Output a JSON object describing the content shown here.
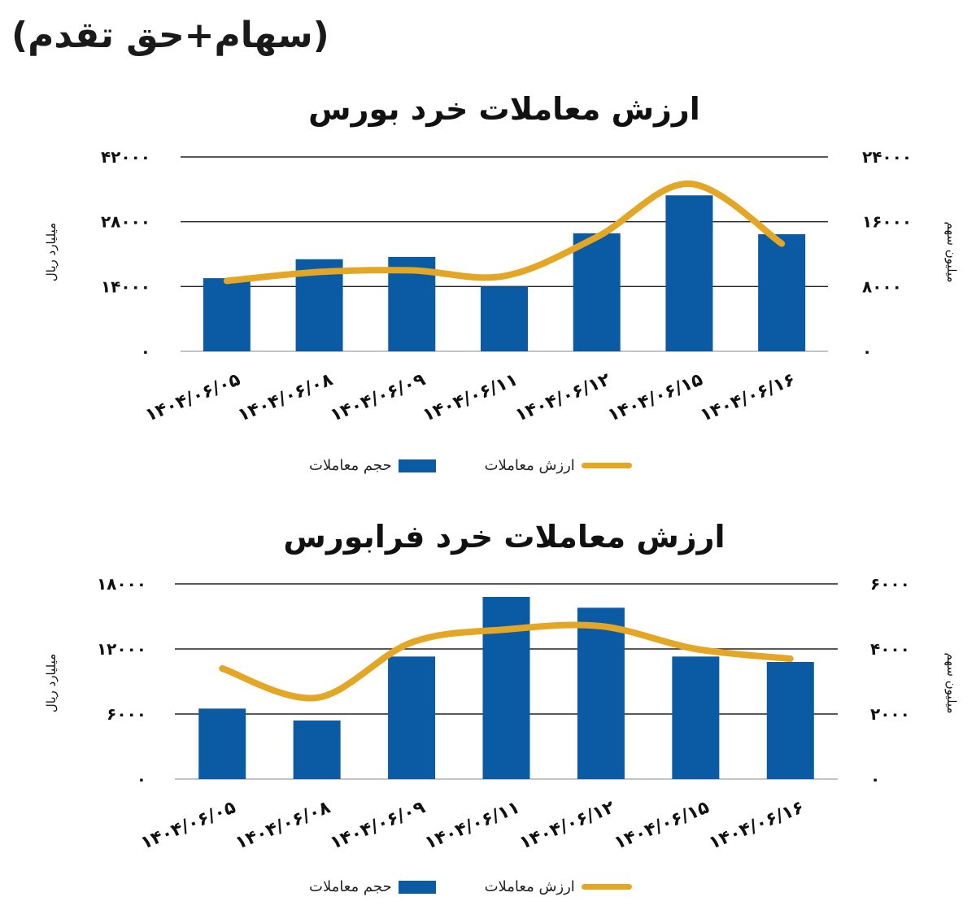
{
  "header_note": "(سهام+حق تقدم)",
  "colors": {
    "bar": "#0a5ba4",
    "line": "#e3a725",
    "grid": "#000000"
  },
  "chart_data": [
    {
      "type": "bar",
      "title": "ارزش معاملات خرد بورس",
      "categories": [
        "۱۴۰۴/۰۶/۰۵",
        "۱۴۰۴/۰۶/۰۸",
        "۱۴۰۴/۰۶/۰۹",
        "۱۴۰۴/۰۶/۱۱",
        "۱۴۰۴/۰۶/۱۲",
        "۱۴۰۴/۰۶/۱۵",
        "۱۴۰۴/۰۶/۱۶"
      ],
      "series": [
        {
          "name": "حجم معاملات",
          "type": "bar",
          "axis": "left",
          "values": [
            15800,
            19900,
            20400,
            14000,
            25500,
            33700,
            25300
          ]
        },
        {
          "name": "ارزش معاملات",
          "type": "line",
          "axis": "right",
          "values": [
            8700,
            9800,
            10000,
            9300,
            14100,
            20700,
            13300
          ]
        }
      ],
      "ylabel_left": "میلیارد ریال",
      "ylabel_right": "میلیون سهم",
      "left_ticks": [
        "۰",
        "۱۴۰۰۰",
        "۲۸۰۰۰",
        "۴۲۰۰۰"
      ],
      "right_ticks": [
        "۰",
        "۸۰۰۰",
        "۱۶۰۰۰",
        "۲۴۰۰۰"
      ],
      "ylim_left": [
        0,
        42000
      ],
      "ylim_right": [
        0,
        24000
      ],
      "legend_position": "bottom"
    },
    {
      "type": "bar",
      "title": "ارزش معاملات خرد فرابورس",
      "categories": [
        "۱۴۰۴/۰۶/۰۵",
        "۱۴۰۴/۰۶/۰۸",
        "۱۴۰۴/۰۶/۰۹",
        "۱۴۰۴/۰۶/۱۱",
        "۱۴۰۴/۰۶/۱۲",
        "۱۴۰۴/۰۶/۱۵",
        "۱۴۰۴/۰۶/۱۶"
      ],
      "series": [
        {
          "name": "حجم معاملات",
          "type": "bar",
          "axis": "left",
          "values": [
            6500,
            5400,
            11300,
            16800,
            15800,
            11300,
            10800
          ]
        },
        {
          "name": "ارزش معاملات",
          "type": "line",
          "axis": "right",
          "values": [
            3400,
            2500,
            4200,
            4600,
            4700,
            4000,
            3700
          ]
        }
      ],
      "ylabel_left": "میلیارد ریال",
      "ylabel_right": "میلیون سهم",
      "left_ticks": [
        "۰",
        "۶۰۰۰",
        "۱۲۰۰۰",
        "۱۸۰۰۰"
      ],
      "right_ticks": [
        "۰",
        "۲۰۰۰",
        "۴۰۰۰",
        "۶۰۰۰"
      ],
      "ylim_left": [
        0,
        18000
      ],
      "ylim_right": [
        0,
        6000
      ],
      "legend_position": "bottom"
    }
  ]
}
